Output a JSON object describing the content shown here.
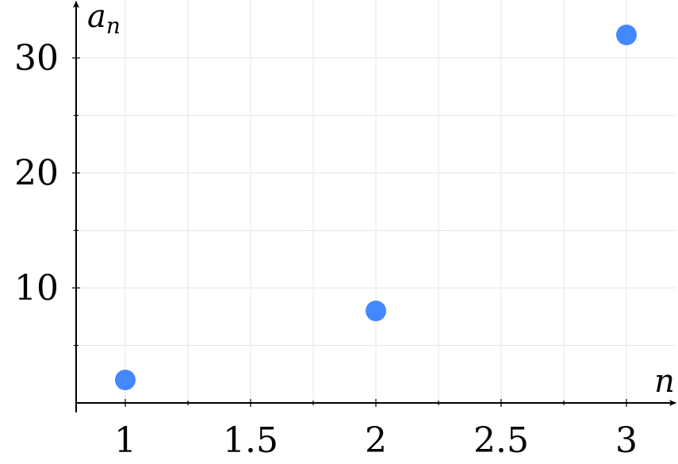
{
  "chart_data": {
    "type": "scatter",
    "title": "",
    "xlabel": "n",
    "ylabel": {
      "base": "a",
      "subscript": "n"
    },
    "x": [
      1,
      2,
      3
    ],
    "y": [
      2,
      8,
      32
    ],
    "xlim": [
      0.8,
      3.2
    ],
    "ylim": [
      0,
      35
    ],
    "x_ticks": [
      1,
      1.5,
      2,
      2.5,
      3
    ],
    "x_tick_labels": [
      "1",
      "1.5",
      "2",
      "2.5",
      "3"
    ],
    "x_minor_ticks": [
      1.25,
      1.75,
      2.25,
      2.75
    ],
    "y_ticks": [
      10,
      20,
      30
    ],
    "y_tick_labels": [
      "10",
      "20",
      "30"
    ],
    "y_minor_ticks": [
      5,
      15,
      25
    ],
    "grid": true,
    "marker_color": "#4488ff"
  }
}
